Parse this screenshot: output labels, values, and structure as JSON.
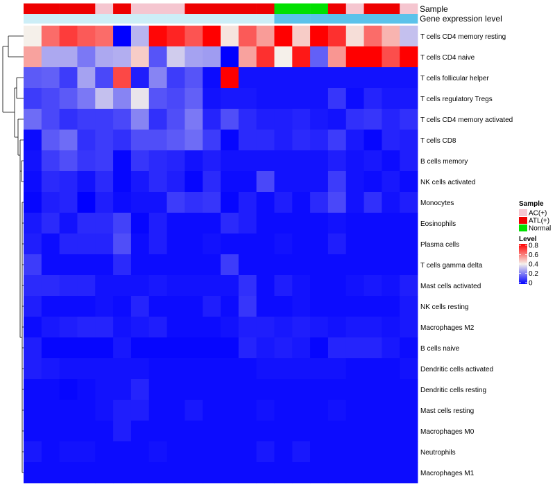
{
  "chart_data": {
    "type": "heatmap",
    "annotation_rows": [
      {
        "label": "Sample"
      },
      {
        "label": "Gene expression level"
      }
    ],
    "sample_groups": [
      "ATL(+)",
      "ATL(+)",
      "ATL(+)",
      "ATL(+)",
      "AC(+)",
      "ATL(+)",
      "AC(+)",
      "AC(+)",
      "AC(+)",
      "ATL(+)",
      "ATL(+)",
      "ATL(+)",
      "ATL(+)",
      "ATL(+)",
      "Normal",
      "Normal",
      "Normal",
      "ATL(+)",
      "AC(+)",
      "ATL(+)",
      "ATL(+)",
      "AC(+)"
    ],
    "expression_level_colors": [
      "#cdeef7",
      "#cdeef7",
      "#cdeef7",
      "#cdeef7",
      "#cdeef7",
      "#cdeef7",
      "#cdeef7",
      "#cdeef7",
      "#cdeef7",
      "#cdeef7",
      "#cdeef7",
      "#cdeef7",
      "#cdeef7",
      "#cdeef7",
      "#5bc2ea",
      "#5bc2ea",
      "#5bc2ea",
      "#5bc2ea",
      "#5bc2ea",
      "#5bc2ea",
      "#5bc2ea",
      "#5bc2ea"
    ],
    "rows": [
      "T cells CD4 memory resting",
      "T cells CD4 naive",
      "T cells follicular helper",
      "T cells regulatory  Tregs",
      "T cells CD4 memory activated",
      "T cells CD8",
      "B cells memory",
      "NK cells activated",
      "Monocytes",
      "Eosinophils",
      "Plasma cells",
      "T cells gamma delta",
      "Mast cells activated",
      "NK cells resting",
      "Macrophages M2",
      "B cells naive",
      "Dendritic cells activated",
      "Dendritic cells resting",
      "Mast cells resting",
      "Macrophages M0",
      "Neutrophils",
      "Macrophages M1"
    ],
    "values": [
      [
        0.4,
        0.62,
        0.7,
        0.65,
        0.62,
        0.0,
        0.3,
        0.79,
        0.74,
        0.66,
        0.8,
        0.42,
        0.65,
        0.54,
        0.8,
        0.46,
        0.8,
        0.72,
        0.43,
        0.62,
        0.5,
        0.32
      ],
      [
        0.53,
        0.28,
        0.28,
        0.2,
        0.28,
        0.29,
        0.46,
        0.14,
        0.34,
        0.27,
        0.26,
        0.0,
        0.53,
        0.72,
        0.4,
        0.76,
        0.16,
        0.55,
        0.8,
        0.8,
        0.67,
        0.8
      ],
      [
        0.15,
        0.16,
        0.1,
        0.27,
        0.12,
        0.68,
        0.05,
        0.22,
        0.1,
        0.14,
        0.02,
        0.8,
        0.03,
        0.03,
        0.03,
        0.03,
        0.03,
        0.03,
        0.03,
        0.03,
        0.03,
        0.03
      ],
      [
        0.1,
        0.12,
        0.15,
        0.2,
        0.32,
        0.22,
        0.38,
        0.14,
        0.12,
        0.16,
        0.03,
        0.04,
        0.04,
        0.03,
        0.03,
        0.03,
        0.03,
        0.09,
        0.02,
        0.06,
        0.04,
        0.04
      ],
      [
        0.18,
        0.12,
        0.08,
        0.1,
        0.1,
        0.12,
        0.22,
        0.08,
        0.13,
        0.2,
        0.06,
        0.13,
        0.07,
        0.05,
        0.05,
        0.06,
        0.04,
        0.03,
        0.08,
        0.09,
        0.06,
        0.08
      ],
      [
        0.02,
        0.15,
        0.18,
        0.08,
        0.1,
        0.08,
        0.13,
        0.13,
        0.15,
        0.18,
        0.1,
        0.01,
        0.07,
        0.07,
        0.05,
        0.07,
        0.06,
        0.1,
        0.04,
        0.01,
        0.06,
        0.05
      ],
      [
        0.03,
        0.1,
        0.13,
        0.09,
        0.1,
        0.01,
        0.09,
        0.07,
        0.06,
        0.03,
        0.05,
        0.03,
        0.03,
        0.03,
        0.03,
        0.03,
        0.03,
        0.05,
        0.03,
        0.04,
        0.02,
        0.05
      ],
      [
        0.02,
        0.07,
        0.06,
        0.03,
        0.07,
        0.01,
        0.04,
        0.07,
        0.05,
        0.01,
        0.07,
        0.02,
        0.02,
        0.12,
        0.03,
        0.03,
        0.03,
        0.1,
        0.03,
        0.02,
        0.04,
        0.02
      ],
      [
        0.01,
        0.05,
        0.06,
        0.0,
        0.05,
        0.02,
        0.03,
        0.03,
        0.1,
        0.08,
        0.09,
        0.01,
        0.05,
        0.02,
        0.05,
        0.02,
        0.07,
        0.12,
        0.03,
        0.08,
        0.03,
        0.05
      ],
      [
        0.04,
        0.07,
        0.03,
        0.07,
        0.07,
        0.11,
        0.01,
        0.05,
        0.02,
        0.02,
        0.02,
        0.07,
        0.05,
        0.02,
        0.02,
        0.02,
        0.02,
        0.03,
        0.02,
        0.02,
        0.02,
        0.02
      ],
      [
        0.05,
        0.02,
        0.06,
        0.06,
        0.06,
        0.13,
        0.02,
        0.05,
        0.02,
        0.02,
        0.03,
        0.02,
        0.02,
        0.02,
        0.03,
        0.02,
        0.02,
        0.05,
        0.02,
        0.02,
        0.02,
        0.02
      ],
      [
        0.1,
        0.02,
        0.02,
        0.02,
        0.02,
        0.07,
        0.02,
        0.02,
        0.02,
        0.02,
        0.02,
        0.1,
        0.02,
        0.02,
        0.02,
        0.02,
        0.02,
        0.02,
        0.02,
        0.02,
        0.02,
        0.02
      ],
      [
        0.07,
        0.07,
        0.06,
        0.06,
        0.03,
        0.03,
        0.03,
        0.04,
        0.03,
        0.03,
        0.03,
        0.03,
        0.08,
        0.02,
        0.05,
        0.03,
        0.02,
        0.02,
        0.03,
        0.04,
        0.03,
        0.05
      ],
      [
        0.05,
        0.02,
        0.02,
        0.02,
        0.03,
        0.02,
        0.06,
        0.02,
        0.02,
        0.02,
        0.05,
        0.02,
        0.09,
        0.02,
        0.02,
        0.03,
        0.02,
        0.02,
        0.02,
        0.02,
        0.02,
        0.04
      ],
      [
        0.02,
        0.04,
        0.05,
        0.06,
        0.06,
        0.03,
        0.04,
        0.05,
        0.02,
        0.02,
        0.02,
        0.03,
        0.05,
        0.05,
        0.04,
        0.05,
        0.04,
        0.03,
        0.04,
        0.04,
        0.03,
        0.04
      ],
      [
        0.05,
        0.01,
        0.01,
        0.01,
        0.01,
        0.04,
        0.01,
        0.01,
        0.01,
        0.01,
        0.01,
        0.01,
        0.06,
        0.04,
        0.05,
        0.04,
        0.01,
        0.06,
        0.06,
        0.06,
        0.04,
        0.02
      ],
      [
        0.05,
        0.04,
        0.03,
        0.03,
        0.03,
        0.03,
        0.03,
        0.02,
        0.02,
        0.02,
        0.02,
        0.02,
        0.02,
        0.03,
        0.03,
        0.03,
        0.03,
        0.03,
        0.02,
        0.02,
        0.02,
        0.03
      ],
      [
        0.02,
        0.02,
        0.01,
        0.02,
        0.03,
        0.03,
        0.06,
        0.02,
        0.02,
        0.02,
        0.02,
        0.02,
        0.02,
        0.02,
        0.02,
        0.02,
        0.02,
        0.02,
        0.02,
        0.02,
        0.02,
        0.02
      ],
      [
        0.02,
        0.02,
        0.02,
        0.02,
        0.03,
        0.05,
        0.05,
        0.02,
        0.02,
        0.04,
        0.02,
        0.02,
        0.02,
        0.03,
        0.02,
        0.02,
        0.02,
        0.03,
        0.02,
        0.02,
        0.02,
        0.02
      ],
      [
        0.02,
        0.02,
        0.02,
        0.02,
        0.02,
        0.05,
        0.02,
        0.02,
        0.02,
        0.02,
        0.02,
        0.02,
        0.02,
        0.02,
        0.02,
        0.02,
        0.02,
        0.02,
        0.02,
        0.02,
        0.02,
        0.02
      ],
      [
        0.04,
        0.02,
        0.03,
        0.03,
        0.02,
        0.02,
        0.02,
        0.03,
        0.02,
        0.02,
        0.02,
        0.02,
        0.02,
        0.04,
        0.02,
        0.04,
        0.02,
        0.02,
        0.02,
        0.02,
        0.02,
        0.02
      ],
      [
        0.02,
        0.02,
        0.02,
        0.02,
        0.02,
        0.02,
        0.02,
        0.02,
        0.02,
        0.02,
        0.02,
        0.02,
        0.02,
        0.02,
        0.02,
        0.02,
        0.02,
        0.02,
        0.02,
        0.02,
        0.02,
        0.02
      ]
    ],
    "color_scale": {
      "min": 0,
      "mid": 0.4,
      "max": 0.8,
      "low": "#0000ff",
      "midColor": "#f5f0ea",
      "high": "#ff0000"
    },
    "legend": {
      "sample_title": "Sample",
      "sample_entries": [
        {
          "label": "AC(+)",
          "color": "#f5c6d0"
        },
        {
          "label": "ATL(+)",
          "color": "#ee0000"
        },
        {
          "label": "Normal",
          "color": "#00e000"
        }
      ],
      "level_title": "Level",
      "level_ticks": [
        "0.8",
        "0.6",
        "0.4",
        "0.2",
        "0"
      ],
      "position": "right"
    },
    "row_dendrogram": true
  }
}
